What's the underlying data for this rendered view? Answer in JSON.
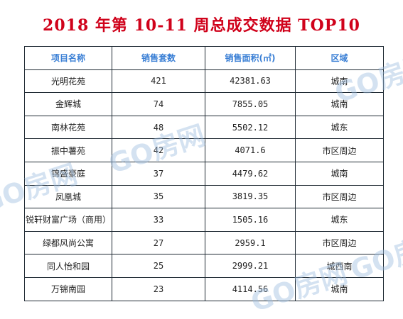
{
  "title": "2018 年第 10-11 周总成交数据 TOP10",
  "headers": [
    "项目名称",
    "销售套数",
    "销售面积(㎡)",
    "区域"
  ],
  "rows": [
    {
      "name": "光明花苑",
      "sets": "421",
      "area": "42381.63",
      "region": "城南"
    },
    {
      "name": "金辉城",
      "sets": "74",
      "area": "7855.05",
      "region": "城南"
    },
    {
      "name": "南林花苑",
      "sets": "48",
      "area": "5502.12",
      "region": "城东"
    },
    {
      "name": "振中薯苑",
      "sets": "42",
      "area": "4071.6",
      "region": "市区周边"
    },
    {
      "name": "锦盛豪庭",
      "sets": "37",
      "area": "4479.62",
      "region": "城南"
    },
    {
      "name": "凤凰城",
      "sets": "35",
      "area": "3819.35",
      "region": "市区周边"
    },
    {
      "name": "锐轩财富广场（商用）",
      "sets": "33",
      "area": "1505.16",
      "region": "城东"
    },
    {
      "name": "绿都风尚公寓",
      "sets": "27",
      "area": "2959.1",
      "region": "市区周边"
    },
    {
      "name": "同人怡和园",
      "sets": "25",
      "area": "2999.21",
      "region": "城西南"
    },
    {
      "name": "万锦南园",
      "sets": "23",
      "area": "4114.56",
      "region": "城南"
    }
  ],
  "watermark": "GO房网"
}
